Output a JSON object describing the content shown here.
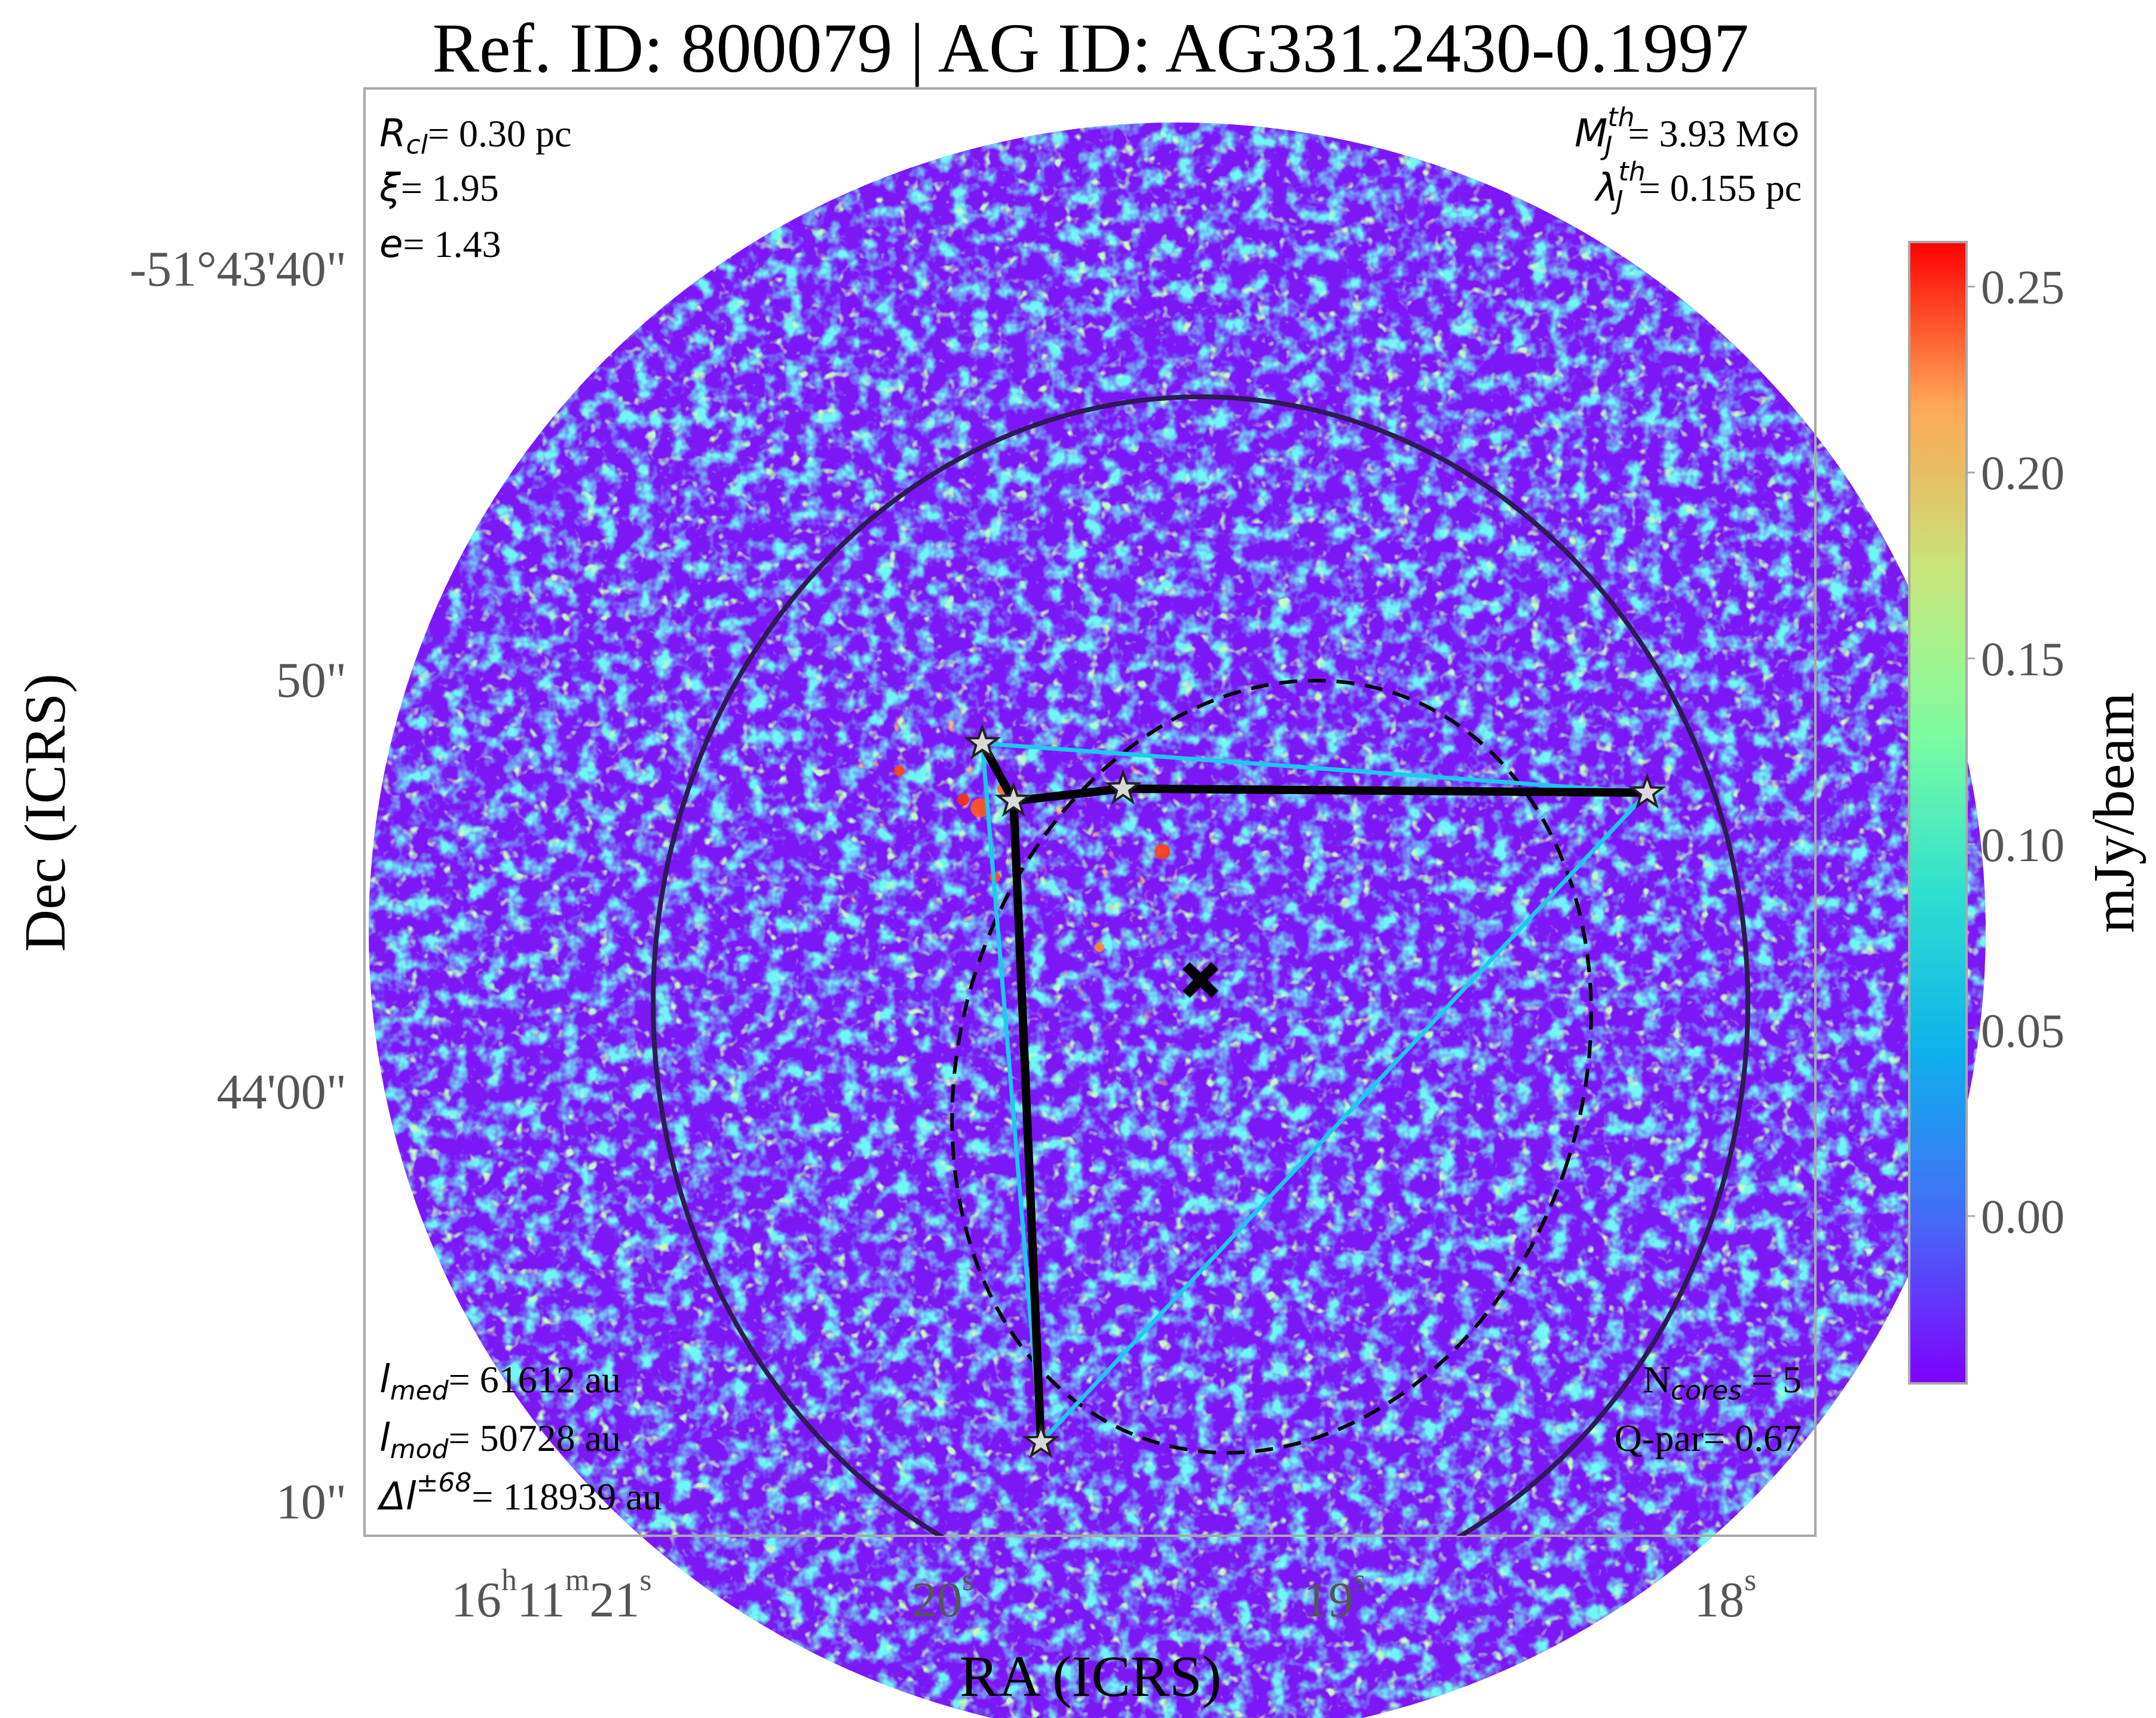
{
  "title": "Ref. ID: 800079 | AG ID: AG331.2430-0.1997",
  "annotations": {
    "r_cl_sym": "R",
    "r_cl_sub": "cl",
    "r_cl_val": "= 0.30 pc",
    "xi_sym": "ξ",
    "xi_val": "= 1.95",
    "e_sym": "e",
    "e_val": "= 1.43",
    "mj_sym": "M",
    "mj_sup": "th",
    "mj_sub": "J",
    "mj_val": "= 3.93 M⊙",
    "lj_sym": "λ",
    "lj_sup": "th",
    "lj_sub": "J",
    "lj_val": "= 0.155 pc",
    "lmed_sym": "l",
    "lmed_sub": "med",
    "lmed_val": "= 61612 au",
    "lmod_sym": "l",
    "lmod_sub": "mod",
    "lmod_val": "= 50728 au",
    "dl_sym": "Δl",
    "dl_sup": "±68",
    "dl_val": "= 118939 au",
    "ncores_pre": "N",
    "ncores_sub": "cores",
    "ncores_val": " = 5",
    "qpar": "Q-par= 0.67"
  },
  "chart_data": {
    "type": "heatmap",
    "title": "Ref. ID: 800079 | AG ID: AG331.2430-0.1997",
    "xlabel": "RA (ICRS)",
    "ylabel": "Dec (ICRS)",
    "x_ticks": [
      {
        "h": "16",
        "hs": "h",
        "m": "11",
        "ms": "m",
        "s": "21",
        "ss": "s"
      },
      {
        "s": "20",
        "ss": "s"
      },
      {
        "s": "19",
        "ss": "s"
      },
      {
        "s": "18",
        "ss": "s"
      }
    ],
    "y_ticks": [
      "-51°43'40\"",
      "50\"",
      "44'00\"",
      "10\""
    ],
    "colorbar": {
      "label": "mJy/beam",
      "ticks": [
        "0.25",
        "0.20",
        "0.15",
        "0.10",
        "0.05",
        "0.00"
      ],
      "tick_values": [
        0.25,
        0.2,
        0.15,
        0.1,
        0.05,
        0.0
      ],
      "range": [
        -0.045,
        0.262
      ],
      "colormap": "rainbow"
    },
    "cores": [
      {
        "ra_s": 19.82,
        "dec_s": 51.7
      },
      {
        "ra_s": 19.74,
        "dec_s": 53.1
      },
      {
        "ra_s": 19.46,
        "dec_s": 52.8
      },
      {
        "ra_s": 18.12,
        "dec_s": 52.9
      },
      {
        "ra_s": 19.67,
        "dec_s": 68.7
      }
    ],
    "mst_edges": [
      [
        0,
        1
      ],
      [
        1,
        2
      ],
      [
        2,
        3
      ],
      [
        1,
        4
      ]
    ],
    "hull_edges": [
      [
        0,
        3
      ],
      [
        3,
        4
      ],
      [
        4,
        0
      ]
    ],
    "centroid": {
      "ra_s": 19.38,
      "dec_s": 56.0
    },
    "colors": {
      "mst": "#000000",
      "hull": "#1ec8f0",
      "cluster_circle": "#2e1a55",
      "ellipse": "#000000",
      "star_fill": "#d9d9d9"
    }
  }
}
